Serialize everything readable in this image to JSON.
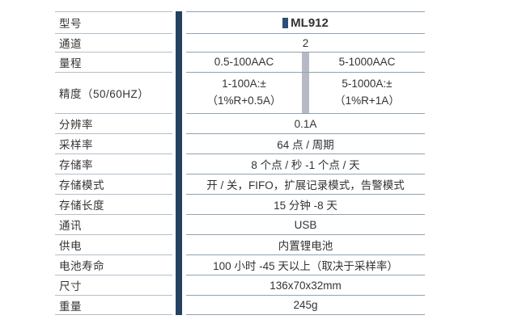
{
  "colors": {
    "accent_bar": "#24425f",
    "model_icon": "#2b5078",
    "split_divider": "#b7bac4"
  },
  "table": {
    "rows": [
      {
        "label": "型号",
        "value": "ML912"
      },
      {
        "label": "通道",
        "value": "2"
      },
      {
        "label": "量程",
        "left": "0.5-100AAC",
        "right": "5-1000AAC"
      },
      {
        "label": "精度（50/60HZ）",
        "left_line1": "1-100A:±",
        "left_line2": "（1%R+0.5A）",
        "right_line1": "5-1000A:±",
        "right_line2": "（1%R+1A）"
      },
      {
        "label": "分辨率",
        "value": "0.1A"
      },
      {
        "label": "采样率",
        "value": "64 点 / 周期"
      },
      {
        "label": "存储率",
        "value": "8 个点 / 秒 -1 个点 / 天"
      },
      {
        "label": "存储模式",
        "value": "开 / 关，FIFO，扩展记录模式，告警模式"
      },
      {
        "label": "存储长度",
        "value": "15 分钟 -8 天"
      },
      {
        "label": "通讯",
        "value": "USB"
      },
      {
        "label": "供电",
        "value": "内置锂电池"
      },
      {
        "label": "电池寿命",
        "value": "100 小时 -45 天以上（取决于采样率）"
      },
      {
        "label": "尺寸",
        "value": "136x70x32mm"
      },
      {
        "label": "重量",
        "value": "245g"
      }
    ]
  }
}
